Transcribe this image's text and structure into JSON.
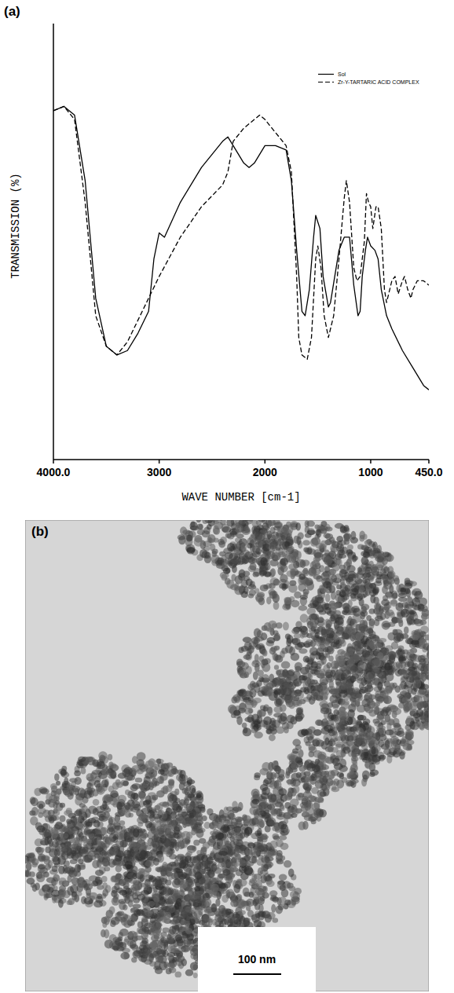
{
  "chart_data": {
    "type": "line",
    "label": "(a)",
    "x_label": "WAVE NUMBER [cm-1]",
    "y_label": "TRANSMISSION (%)",
    "xlim": [
      4000,
      450
    ],
    "ylim": [
      0,
      100
    ],
    "xticks": [
      {
        "value": 4000,
        "label": "4000.0"
      },
      3000,
      2000,
      1000,
      {
        "value": 450,
        "label": "450.0"
      }
    ],
    "tick_labels": "x",
    "grid": false,
    "legend": "upper right",
    "series": [
      {
        "name": "Sol",
        "color": "#000000",
        "line_style": "solid",
        "x": [
          4000,
          3900,
          3800,
          3700,
          3600,
          3500,
          3400,
          3300,
          3200,
          3100,
          3050,
          3000,
          2950,
          2800,
          2600,
          2400,
          2350,
          2300,
          2200,
          2150,
          2100,
          2000,
          1900,
          1800,
          1750,
          1700,
          1650,
          1620,
          1580,
          1540,
          1520,
          1480,
          1450,
          1400,
          1380,
          1340,
          1300,
          1250,
          1200,
          1160,
          1120,
          1100,
          1080,
          1050,
          1030,
          1000,
          960,
          930,
          900,
          850,
          800,
          700,
          600,
          500,
          450
        ],
        "values": [
          80,
          81,
          79,
          64,
          37,
          26,
          24,
          25,
          29,
          34,
          46,
          52,
          51,
          59,
          67,
          73,
          74,
          72,
          68,
          67,
          68,
          72,
          72,
          71,
          64,
          48,
          34,
          33,
          39,
          51,
          56,
          53,
          42,
          35,
          36,
          42,
          48,
          51,
          51,
          40,
          33,
          34,
          42,
          48,
          51,
          49,
          48,
          46,
          39,
          33,
          30,
          25,
          21,
          17,
          16
        ]
      },
      {
        "name": "Zr-Y-TARTARIC ACID COMPLEX",
        "color": "#000000",
        "line_style": "dashed",
        "x": [
          4000,
          3900,
          3800,
          3700,
          3600,
          3500,
          3400,
          3300,
          3200,
          3100,
          3000,
          2800,
          2600,
          2400,
          2350,
          2300,
          2200,
          2100,
          2050,
          2000,
          1900,
          1800,
          1750,
          1700,
          1680,
          1650,
          1600,
          1560,
          1520,
          1500,
          1470,
          1440,
          1400,
          1350,
          1300,
          1250,
          1230,
          1200,
          1160,
          1130,
          1100,
          1060,
          1040,
          1020,
          1000,
          980,
          950,
          930,
          900,
          870,
          850,
          800,
          770,
          740,
          700,
          680,
          650,
          620,
          600,
          560,
          500,
          450
        ],
        "values": [
          80,
          81,
          78,
          59,
          33,
          26,
          24,
          27,
          32,
          37,
          42,
          51,
          58,
          63,
          66,
          73,
          76,
          78,
          79,
          78,
          75,
          72,
          66,
          42,
          28,
          24,
          23,
          28,
          46,
          49,
          44,
          33,
          28,
          33,
          46,
          60,
          64,
          59,
          44,
          41,
          42,
          50,
          61,
          59,
          58,
          53,
          58,
          58,
          53,
          39,
          36,
          41,
          42,
          38,
          41,
          42,
          39,
          37,
          39,
          41,
          41,
          40
        ]
      }
    ]
  },
  "image": {
    "label": "(b)",
    "scale_bar": "100 nm"
  }
}
